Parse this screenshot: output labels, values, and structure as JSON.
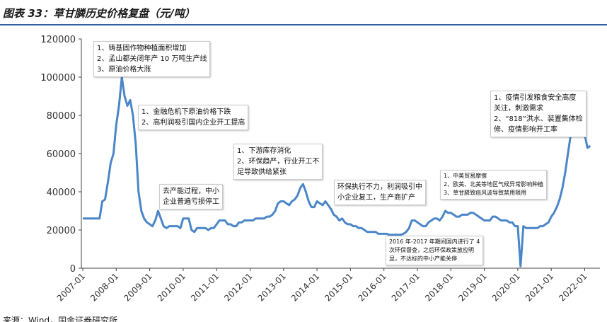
{
  "chart_data": {
    "type": "line",
    "title": "图表 33：草甘膦历史价格复盘（元/吨）",
    "source": "来源：Wind，国金证券研究所",
    "x": [
      "2007-01",
      "2007-02",
      "2007-03",
      "2007-04",
      "2007-05",
      "2007-06",
      "2007-07",
      "2007-08",
      "2007-09",
      "2007-10",
      "2007-11",
      "2007-12",
      "2008-01",
      "2008-02",
      "2008-03",
      "2008-04",
      "2008-05",
      "2008-06",
      "2008-07",
      "2008-08",
      "2008-09",
      "2008-10",
      "2008-11",
      "2008-12",
      "2009-01",
      "2009-02",
      "2009-03",
      "2009-04",
      "2009-05",
      "2009-06",
      "2009-07",
      "2009-08",
      "2009-09",
      "2009-10",
      "2009-11",
      "2009-12",
      "2010-01",
      "2010-02",
      "2010-03",
      "2010-04",
      "2010-05",
      "2010-06",
      "2010-07",
      "2010-08",
      "2010-09",
      "2010-10",
      "2010-11",
      "2010-12",
      "2011-01",
      "2011-02",
      "2011-03",
      "2011-04",
      "2011-05",
      "2011-06",
      "2011-07",
      "2011-08",
      "2011-09",
      "2011-10",
      "2011-11",
      "2011-12",
      "2012-01",
      "2012-02",
      "2012-03",
      "2012-04",
      "2012-05",
      "2012-06",
      "2012-07",
      "2012-08",
      "2012-09",
      "2012-10",
      "2012-11",
      "2012-12",
      "2013-01",
      "2013-02",
      "2013-03",
      "2013-04",
      "2013-05",
      "2013-06",
      "2013-07",
      "2013-08",
      "2013-09",
      "2013-10",
      "2013-11",
      "2013-12",
      "2014-01",
      "2014-02",
      "2014-03",
      "2014-04",
      "2014-05",
      "2014-06",
      "2014-07",
      "2014-08",
      "2014-09",
      "2014-10",
      "2014-11",
      "2014-12",
      "2015-01",
      "2015-02",
      "2015-03",
      "2015-04",
      "2015-05",
      "2015-06",
      "2015-07",
      "2015-08",
      "2015-09",
      "2015-10",
      "2015-11",
      "2015-12",
      "2016-01",
      "2016-02",
      "2016-03",
      "2016-04",
      "2016-05",
      "2016-06",
      "2016-07",
      "2016-08",
      "2016-09",
      "2016-10",
      "2016-11",
      "2016-12",
      "2017-01",
      "2017-02",
      "2017-03",
      "2017-04",
      "2017-05",
      "2017-06",
      "2017-07",
      "2017-08",
      "2017-09",
      "2017-10",
      "2017-11",
      "2017-12",
      "2018-01",
      "2018-02",
      "2018-03",
      "2018-04",
      "2018-05",
      "2018-06",
      "2018-07",
      "2018-08",
      "2018-09",
      "2018-10",
      "2018-11",
      "2018-12",
      "2019-01",
      "2019-02",
      "2019-03",
      "2019-04",
      "2019-05",
      "2019-06",
      "2019-07",
      "2019-08",
      "2019-09",
      "2019-10",
      "2019-11",
      "2019-12",
      "2020-01",
      "2020-02",
      "2020-03",
      "2020-04",
      "2020-05",
      "2020-06",
      "2020-07",
      "2020-08",
      "2020-09",
      "2020-10",
      "2020-11",
      "2020-12",
      "2021-01",
      "2021-02",
      "2021-03",
      "2021-04",
      "2021-05",
      "2021-06",
      "2021-07",
      "2021-08",
      "2021-09",
      "2021-10",
      "2021-11",
      "2021-12",
      "2022-01",
      "2022-02",
      "2022-03"
    ],
    "values": [
      26000,
      26000,
      26000,
      26000,
      26000,
      26000,
      26000,
      35000,
      36000,
      45000,
      55000,
      60000,
      75000,
      85000,
      100000,
      90000,
      85000,
      88000,
      80000,
      65000,
      40000,
      30000,
      26000,
      24000,
      23000,
      22000,
      25000,
      30000,
      26000,
      22000,
      21000,
      22000,
      22000,
      22000,
      22000,
      21000,
      26000,
      26000,
      26000,
      20000,
      19000,
      21000,
      21000,
      21000,
      21000,
      20000,
      21000,
      21000,
      23000,
      25000,
      25000,
      25000,
      23000,
      23000,
      22000,
      22000,
      24000,
      24000,
      25000,
      25000,
      25000,
      25000,
      26000,
      26000,
      26000,
      26000,
      27000,
      27000,
      28000,
      30000,
      34000,
      35000,
      35000,
      34000,
      33000,
      35000,
      36000,
      38000,
      42000,
      44000,
      40000,
      35000,
      32000,
      32000,
      35000,
      34000,
      33000,
      35000,
      33000,
      31000,
      28000,
      27000,
      25000,
      26000,
      24000,
      23000,
      23000,
      22000,
      22000,
      21000,
      21000,
      20000,
      19000,
      19000,
      19000,
      19000,
      18000,
      18000,
      18000,
      18000,
      17500,
      17500,
      17500,
      17500,
      17500,
      18000,
      19000,
      21000,
      25000,
      25000,
      24000,
      23000,
      22000,
      22000,
      24000,
      25000,
      26000,
      26000,
      25000,
      27000,
      30000,
      29000,
      29000,
      28000,
      27000,
      27000,
      28000,
      28000,
      28000,
      29000,
      29000,
      28000,
      27000,
      26000,
      25000,
      25000,
      25000,
      27000,
      27000,
      26000,
      25000,
      25000,
      25000,
      24000,
      24000,
      22000,
      22000,
      1000,
      22000,
      21000,
      21000,
      21000,
      21000,
      21000,
      22000,
      22000,
      23000,
      24000,
      27000,
      29000,
      32000,
      36000,
      42000,
      50000,
      60000,
      70000,
      79000,
      80000,
      80000,
      78000,
      70000,
      63000,
      64000
    ],
    "color": "#4a86c8",
    "ylim": [
      0,
      120000
    ],
    "yticks": [
      0,
      20000,
      40000,
      60000,
      80000,
      100000,
      120000
    ],
    "xticks": [
      "2007-01",
      "2008-01",
      "2009-01",
      "2010-01",
      "2011-01",
      "2012-01",
      "2013-01",
      "2014-01",
      "2015-01",
      "2016-01",
      "2017-01",
      "2018-01",
      "2019-01",
      "2020-01",
      "2021-01",
      "2022-01"
    ],
    "annotations": [
      {
        "lines": [
          "1、铸基固作物种植面积增加",
          "2、孟山都关闭年产 10 万吨生产线",
          "3、原油价格大涨"
        ]
      },
      {
        "lines": [
          "1、金融危机下原油价格下跌",
          "2、高利润吸引国内企业开工提高"
        ]
      },
      {
        "lines": [
          "去产能过程，中小",
          "企业普遍亏损停工"
        ]
      },
      {
        "lines": [
          "1、下游库存消化",
          "2、环保趋严，行业开工不",
          "足导致供给紧张"
        ]
      },
      {
        "lines": [
          "环保执行不力，利润吸引中",
          "小企业复工，生产商扩产"
        ]
      },
      {
        "lines": [
          "2016 年-2017 年期间国内进行了 4",
          "次环保督查，之后环保政策放应明",
          "显，不达标的中小产能关停"
        ]
      },
      {
        "lines": [
          "1、中美贸易摩擦",
          "2、欧美、北美等地区气候异常影响种植",
          "3、草甘膦致癌风波导致禁用限用"
        ]
      },
      {
        "lines": [
          "1、疫情引发粮食安全高度",
          "关注，刺激需求",
          "2、“818”洪水、装置集体检",
          "修、疫情影响开工率"
        ]
      }
    ]
  }
}
